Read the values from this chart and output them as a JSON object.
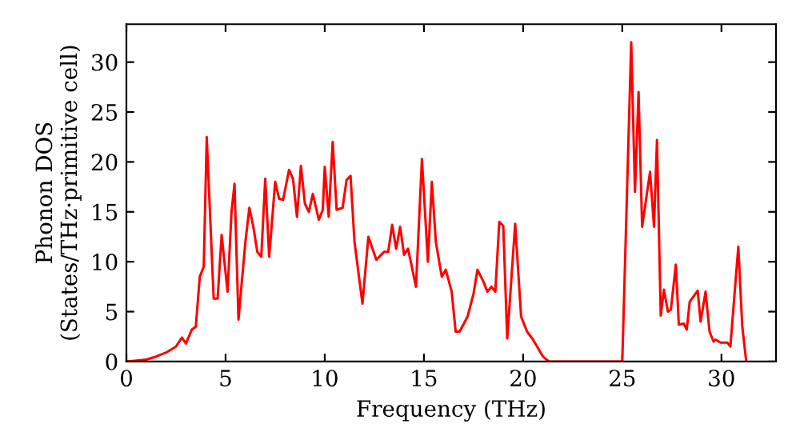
{
  "chart_data": {
    "type": "line",
    "xlabel": "Frequency (THz)",
    "ylabel": "Phonon DOS\n(States/THz·primitive cell)",
    "xlim": [
      0,
      32.75
    ],
    "ylim": [
      0,
      33.8
    ],
    "xticks": [
      0,
      5,
      10,
      15,
      20,
      25,
      30
    ],
    "yticks": [
      0,
      5,
      10,
      15,
      20,
      25,
      30
    ],
    "grid": false,
    "legend": false,
    "line_style": "solid",
    "marker": "none",
    "series": [
      {
        "color": "#ff0000",
        "x": [
          0,
          1,
          1.5,
          2,
          2.5,
          2.8,
          3.0,
          3.3,
          3.5,
          3.7,
          3.9,
          4.05,
          4.4,
          4.6,
          4.8,
          5.1,
          5.3,
          5.45,
          5.65,
          6.0,
          6.2,
          6.4,
          6.6,
          6.8,
          7.0,
          7.2,
          7.5,
          7.7,
          7.9,
          8.2,
          8.4,
          8.6,
          8.8,
          9.0,
          9.2,
          9.4,
          9.7,
          9.9,
          10.0,
          10.2,
          10.4,
          10.6,
          10.9,
          11.1,
          11.3,
          11.5,
          11.9,
          12.2,
          12.6,
          13.0,
          13.2,
          13.4,
          13.6,
          13.8,
          14.0,
          14.2,
          14.6,
          14.9,
          15.2,
          15.4,
          15.6,
          15.9,
          16.1,
          16.4,
          16.6,
          16.8,
          17.2,
          17.5,
          17.7,
          18.0,
          18.2,
          18.4,
          18.6,
          18.8,
          19.0,
          19.2,
          19.6,
          19.9,
          20.2,
          20.5,
          21.0,
          21.3,
          25.0,
          25.45,
          25.64,
          25.82,
          26.0,
          26.4,
          26.6,
          26.75,
          26.94,
          27.1,
          27.3,
          27.45,
          27.7,
          27.85,
          28.1,
          28.25,
          28.4,
          28.8,
          28.95,
          29.2,
          29.4,
          29.6,
          29.7,
          29.95,
          30.3,
          30.45,
          30.85,
          31.05,
          31.25
        ],
        "values": [
          0,
          0.2,
          0.5,
          0.9,
          1.5,
          2.4,
          1.8,
          3.2,
          3.5,
          8.5,
          9.5,
          22.5,
          6.3,
          6.3,
          12.7,
          7,
          15,
          17.8,
          4.2,
          12,
          15.4,
          13.5,
          11,
          10.5,
          18.3,
          10.5,
          18,
          16.3,
          16.2,
          19.2,
          18.3,
          14.5,
          19.6,
          15.8,
          15,
          16.8,
          14.2,
          15.2,
          19.5,
          14.5,
          22,
          15.2,
          15.4,
          18.2,
          18.6,
          12,
          5.8,
          12.5,
          10.2,
          11,
          11,
          13.7,
          11.3,
          13.5,
          10.7,
          11.3,
          7.5,
          20.3,
          10,
          18,
          12,
          8.5,
          9.2,
          7,
          3,
          3,
          4.5,
          6.8,
          9.2,
          8,
          7,
          7.5,
          7,
          14,
          13.6,
          2.3,
          13.8,
          4.5,
          3,
          2.2,
          0.5,
          0,
          0,
          32,
          17,
          27,
          13.5,
          19,
          13.5,
          22.2,
          4.6,
          7.2,
          5,
          5.2,
          9.7,
          3.7,
          3.8,
          3.2,
          6,
          7.1,
          4,
          7,
          3,
          2,
          2.2,
          1.9,
          1.9,
          1.5,
          11.5,
          3.5,
          0
        ]
      }
    ]
  }
}
